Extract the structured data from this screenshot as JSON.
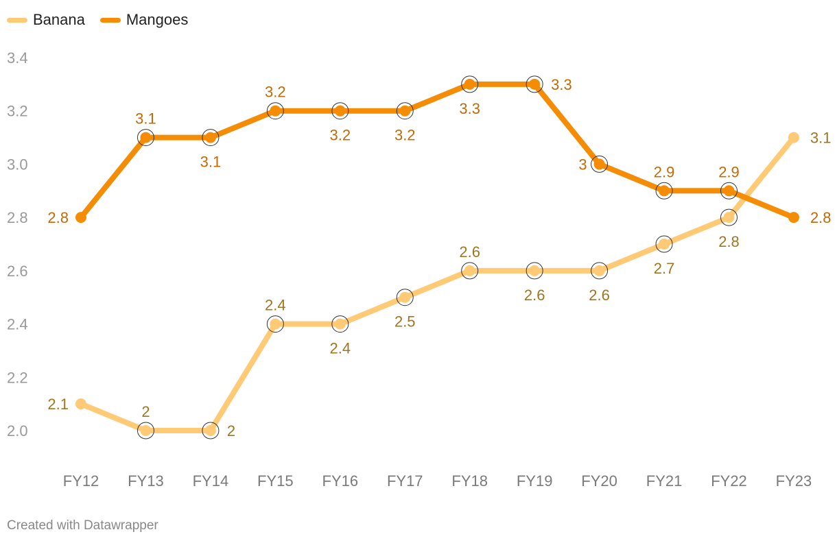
{
  "chart_data": {
    "type": "line",
    "x": [
      "FY12",
      "FY13",
      "FY14",
      "FY15",
      "FY16",
      "FY17",
      "FY18",
      "FY19",
      "FY20",
      "FY21",
      "FY22",
      "FY23"
    ],
    "series": [
      {
        "name": "Banana",
        "color": "#ffca76",
        "label_color": "#a07520",
        "values": [
          2.1,
          2.0,
          2.0,
          2.4,
          2.4,
          2.5,
          2.6,
          2.6,
          2.6,
          2.7,
          2.8,
          3.1
        ],
        "labels": [
          "2.1",
          "2",
          "2",
          "2.4",
          "2.4",
          "2.5",
          "2.6",
          "2.6",
          "2.6",
          "2.7",
          "2.8",
          "3.1"
        ]
      },
      {
        "name": "Mangoes",
        "color": "#f48c06",
        "label_color": "#c06a08",
        "values": [
          2.8,
          3.1,
          3.1,
          3.2,
          3.2,
          3.2,
          3.3,
          3.3,
          3.0,
          2.9,
          2.9,
          2.8
        ],
        "labels": [
          "2.8",
          "3.1",
          "3.1",
          "3.2",
          "3.2",
          "3.2",
          "3.3",
          "3.3",
          "3",
          "2.9",
          "2.9",
          "2.8"
        ]
      }
    ],
    "y_ticks": [
      "2.0",
      "2.2",
      "2.4",
      "2.6",
      "2.8",
      "3.0",
      "3.2",
      "3.4"
    ],
    "ylim": [
      2.0,
      3.4
    ],
    "title": "",
    "xlabel": "",
    "ylabel": "",
    "grid": false,
    "legend_position": "top-left"
  },
  "footer": {
    "credit": "Created with Datawrapper"
  }
}
